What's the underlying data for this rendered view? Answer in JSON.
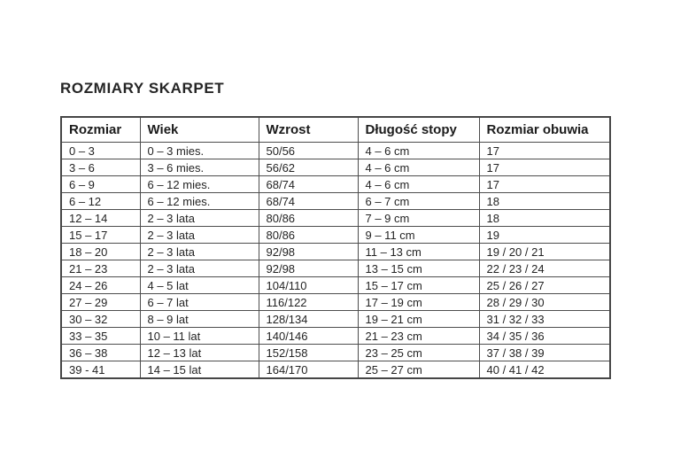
{
  "page": {
    "title": "ROZMIARY SKARPET"
  },
  "table": {
    "columns": [
      "Rozmiar",
      "Wiek",
      "Wzrost",
      "Długość stopy",
      "Rozmiar obuwia"
    ],
    "rows": [
      [
        "0 – 3",
        "0 – 3 mies.",
        "50/56",
        "4 – 6 cm",
        "17"
      ],
      [
        "3 – 6",
        "3 – 6 mies.",
        "56/62",
        "4 – 6 cm",
        "17"
      ],
      [
        "6 – 9",
        "6 – 12 mies.",
        "68/74",
        "4 – 6 cm",
        "17"
      ],
      [
        "6 – 12",
        "6 – 12 mies.",
        "68/74",
        "6 – 7 cm",
        "18"
      ],
      [
        "12 – 14",
        "2 – 3 lata",
        "80/86",
        "7 – 9 cm",
        "18"
      ],
      [
        "15 – 17",
        "2 – 3 lata",
        "80/86",
        "9 – 11 cm",
        "19"
      ],
      [
        "18 – 20",
        "2 – 3 lata",
        "92/98",
        "11 – 13 cm",
        "19 / 20 / 21"
      ],
      [
        "21 – 23",
        "2 – 3 lata",
        "92/98",
        "13 – 15 cm",
        "22 / 23 / 24"
      ],
      [
        "24 – 26",
        "4 – 5 lat",
        "104/110",
        "15 – 17 cm",
        "25 / 26 / 27"
      ],
      [
        "27 – 29",
        "6 – 7 lat",
        "116/122",
        "17 – 19 cm",
        "28 / 29 / 30"
      ],
      [
        "30 – 32",
        "8 – 9 lat",
        "128/134",
        "19 – 21 cm",
        "31 / 32 / 33"
      ],
      [
        "33 – 35",
        "10 – 11 lat",
        "140/146",
        "21 – 23 cm",
        "34 / 35 / 36"
      ],
      [
        "36 – 38",
        "12 – 13 lat",
        "152/158",
        "23 – 25 cm",
        "37 / 38 / 39"
      ],
      [
        "39 - 41",
        "14 – 15 lat",
        "164/170",
        "25 – 27 cm",
        "40 / 41 / 42"
      ]
    ]
  }
}
